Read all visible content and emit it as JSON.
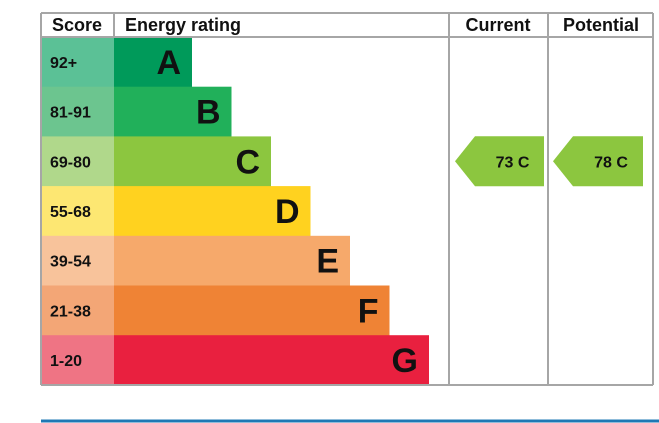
{
  "headers": {
    "score": "Score",
    "energy_rating": "Energy rating",
    "current": "Current",
    "potential": "Potential"
  },
  "chart_data": {
    "type": "bar",
    "categories": [
      "A",
      "B",
      "C",
      "D",
      "E",
      "F",
      "G"
    ],
    "score_ranges": [
      "92+",
      "81-91",
      "69-80",
      "55-68",
      "39-54",
      "21-38",
      "1-20"
    ],
    "bands": [
      {
        "letter": "A",
        "score": "92+",
        "color": "#009a5a",
        "score_color": "#5bc196"
      },
      {
        "letter": "B",
        "score": "81-91",
        "color": "#21b05a",
        "score_color": "#6cc58f"
      },
      {
        "letter": "C",
        "score": "69-80",
        "color": "#8cc63f",
        "score_color": "#b0d88b"
      },
      {
        "letter": "D",
        "score": "55-68",
        "color": "#ffd21f",
        "score_color": "#fde772"
      },
      {
        "letter": "E",
        "score": "39-54",
        "color": "#f6a96b",
        "score_color": "#f8c39b"
      },
      {
        "letter": "F",
        "score": "21-38",
        "color": "#ef8335",
        "score_color": "#f3a676"
      },
      {
        "letter": "G",
        "score": "1-20",
        "color": "#e9203f",
        "score_color": "#ef7484"
      }
    ],
    "current": {
      "value": 73,
      "band": "C",
      "label": "73  C",
      "color": "#8cc63f"
    },
    "potential": {
      "value": 78,
      "band": "C",
      "label": "78  C",
      "color": "#8cc63f"
    }
  },
  "colors": {
    "grid": "#a6a6a6",
    "footer_rule": "#1f78b4",
    "text": "#111111"
  }
}
